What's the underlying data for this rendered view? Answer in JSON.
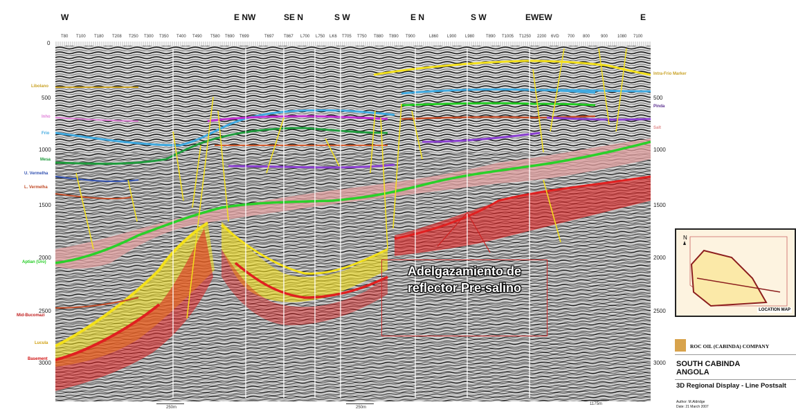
{
  "directions": [
    "W",
    "E NW",
    "SE N",
    "S W",
    "E N",
    "S W",
    "EWEW",
    "E"
  ],
  "wells": [
    "T80",
    "T100",
    "T180",
    "T208",
    "T250",
    "T300",
    "T350",
    "T400",
    "T490",
    "T580",
    "T690",
    "T699",
    "T697",
    "T867",
    "L700",
    "L750",
    "LK6",
    "T705",
    "T750",
    "T880",
    "T890",
    "T900",
    "L860",
    "L900",
    "L980",
    "T890",
    "T1005",
    "T1250",
    "2200",
    "6VD",
    "700",
    "800",
    "900",
    "1080",
    "7100"
  ],
  "horizons_left": [
    {
      "name": "Libolano",
      "color": "#c9a225"
    },
    {
      "name": "Inho",
      "color": "#e07fd8"
    },
    {
      "name": "Frio",
      "color": "#3fa9e0"
    },
    {
      "name": "Mesa",
      "color": "#1e9b3c"
    },
    {
      "name": "U. Vermelha",
      "color": "#3050b0"
    },
    {
      "name": "L. Vermelha",
      "color": "#c04a26"
    },
    {
      "name": "Aptian (Uro)",
      "color": "#22cc22"
    },
    {
      "name": "Mid-Bucomazi",
      "color": "#c01e1e"
    },
    {
      "name": "Lucula",
      "color": "#e0c020"
    },
    {
      "name": "Basement",
      "color": "#d01010"
    }
  ],
  "horizons_right": [
    {
      "name": "Intra-Frio Marker",
      "color": "#c9a225"
    },
    {
      "name": "Pinda",
      "color": "#5b2f8f"
    },
    {
      "name": "Salt",
      "color": "#e08f8f"
    }
  ],
  "depth_axis": {
    "left": [
      "0",
      "500",
      "1000",
      "1500",
      "2000",
      "2500",
      "3000"
    ],
    "right": [
      "500",
      "1000",
      "1500",
      "2000",
      "2500",
      "3000"
    ]
  },
  "annotation": "Adelgazamiento de reflector Pre-salino",
  "scalebars": [
    "250m",
    "250m",
    "1175m"
  ],
  "location_map_label": "LOCATION MAP",
  "company": "ROC OIL (CABINDA) COMPANY",
  "region": "SOUTH CABINDA ANGOLA",
  "display_title": "3D Regional Display - Line Postsalt",
  "author": "Author: M.Aldridge",
  "date": "Date: 21 March 2007",
  "colors": {
    "salt": "#e2a0a0",
    "presalt_red": "#e02020",
    "yellow": "#f3e01a",
    "green": "#2ad02a"
  }
}
